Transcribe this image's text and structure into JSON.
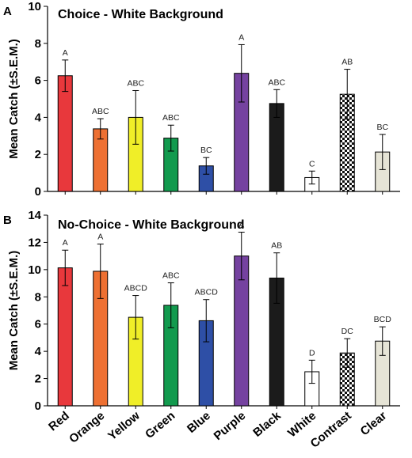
{
  "colors": {
    "Red": "#e8383c",
    "Orange": "#ee7032",
    "Yellow": "#f0ee28",
    "Green": "#129a4e",
    "Blue": "#2e4fa6",
    "Purple": "#7542a0",
    "Black": "#1b1b1b",
    "White": "#ffffff",
    "Contrast": "checkered",
    "Clear": "#e6e4d6"
  },
  "chart_data": [
    {
      "type": "bar",
      "panel": "A",
      "title": "Choice - White Background",
      "ylabel": "Mean Catch (±S.E.M.)",
      "xlabel": "",
      "ylim": [
        0,
        10
      ],
      "yticks": [
        0,
        2,
        4,
        6,
        8,
        10
      ],
      "grid": false,
      "categories": [
        "Red",
        "Orange",
        "Yellow",
        "Green",
        "Blue",
        "Purple",
        "Black",
        "White",
        "Contrast",
        "Clear"
      ],
      "values": [
        6.25,
        3.38,
        4.0,
        2.88,
        1.38,
        6.38,
        4.75,
        0.75,
        5.25,
        2.13
      ],
      "sem": [
        0.85,
        0.55,
        1.45,
        0.7,
        0.45,
        1.55,
        0.75,
        0.35,
        1.35,
        0.95
      ],
      "letters": [
        "A",
        "ABC",
        "ABC",
        "ABC",
        "BC",
        "A",
        "ABC",
        "C",
        "AB",
        "BC"
      ]
    },
    {
      "type": "bar",
      "panel": "B",
      "title": "No-Choice - White Background",
      "ylabel": "Mean Catch (±S.E.M.)",
      "xlabel": "",
      "ylim": [
        0,
        14
      ],
      "yticks": [
        0,
        2,
        4,
        6,
        8,
        10,
        12,
        14
      ],
      "grid": false,
      "categories": [
        "Red",
        "Orange",
        "Yellow",
        "Green",
        "Blue",
        "Purple",
        "Black",
        "White",
        "Contrast",
        "Clear"
      ],
      "values": [
        10.13,
        9.88,
        6.5,
        7.38,
        6.25,
        11.0,
        9.38,
        2.5,
        3.88,
        4.75
      ],
      "sem": [
        1.3,
        2.0,
        1.6,
        1.65,
        1.55,
        1.75,
        1.85,
        0.85,
        1.05,
        1.05
      ],
      "letters": [
        "A",
        "A",
        "ABCD",
        "ABC",
        "ABCD",
        "A",
        "AB",
        "D",
        "DC",
        "BCD"
      ]
    }
  ]
}
